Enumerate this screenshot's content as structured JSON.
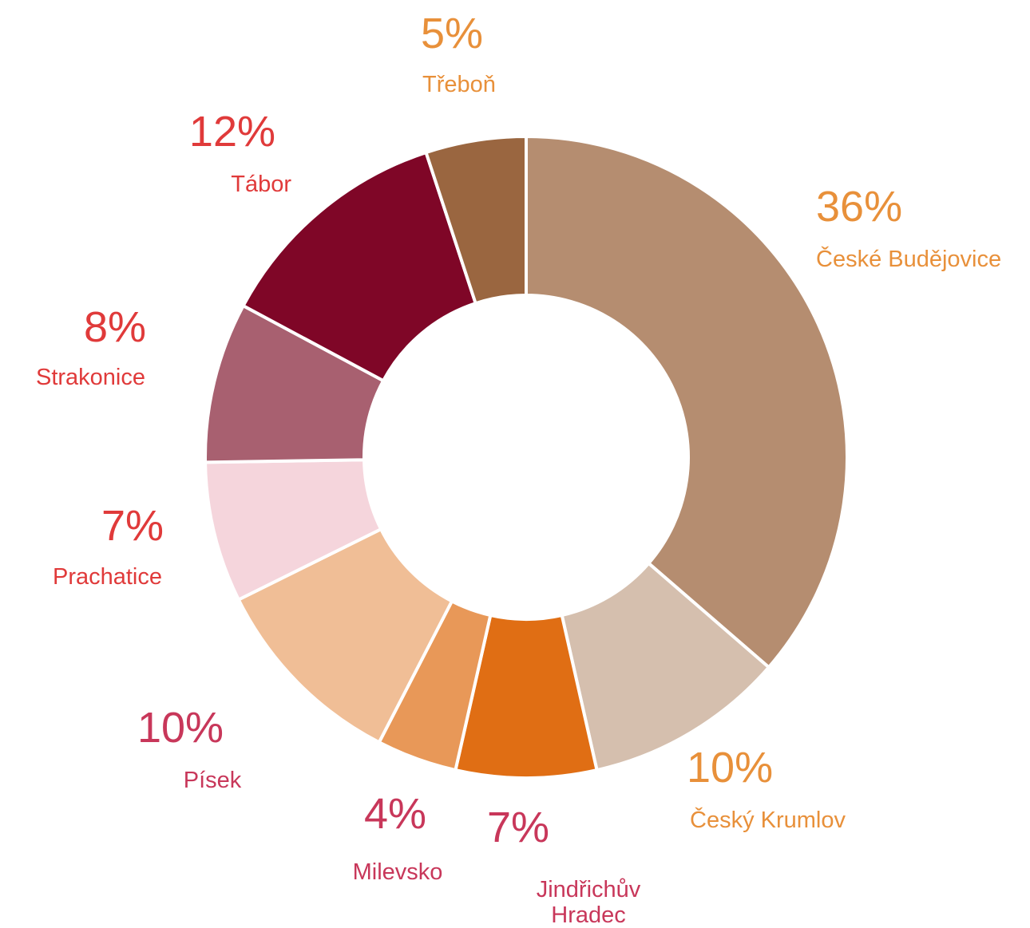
{
  "chart_data": {
    "type": "donut",
    "categories": [
      "České Budějovice",
      "Český Krumlov",
      "Jindřichův Hradec",
      "Milevsko",
      "Písek",
      "Prachatice",
      "Strakonice",
      "Tábor",
      "Třeboň"
    ],
    "values": [
      36,
      10,
      7,
      4,
      10,
      7,
      8,
      12,
      5
    ],
    "value_labels": [
      "36%",
      "10%",
      "7%",
      "4%",
      "10%",
      "7%",
      "8%",
      "12%",
      "5%"
    ],
    "colors": [
      "#b58d70",
      "#d5bfae",
      "#e06e14",
      "#e89858",
      "#f0be96",
      "#f5d5dc",
      "#a86070",
      "#7f0627",
      "#9a6640"
    ],
    "label_colors": [
      "#e8903a",
      "#e8903a",
      "#c8375a",
      "#c8375a",
      "#c8375a",
      "#e03a3a",
      "#e03a3a",
      "#e03a3a",
      "#e8903a"
    ]
  }
}
